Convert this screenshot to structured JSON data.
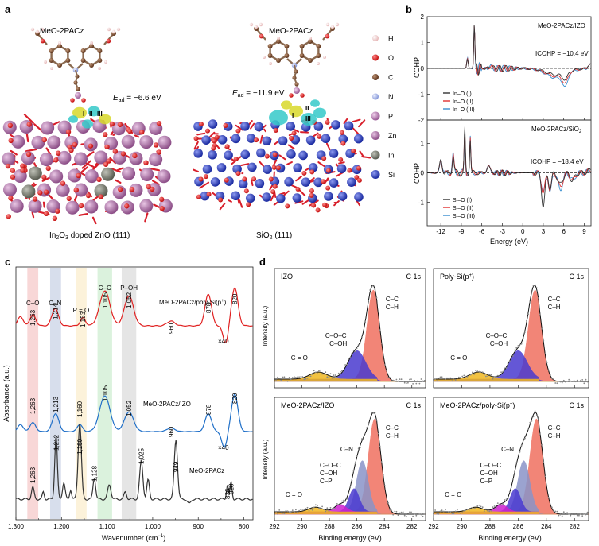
{
  "panels": {
    "a": {
      "letter": "a",
      "left": {
        "molecule": "MeO-2PACz",
        "energy_prefix": "E",
        "energy_sub": "ad",
        "energy_value": " = −6.6 eV",
        "sites": [
          "I",
          "II",
          "III"
        ],
        "caption_pre": "In",
        "caption_sub1": "2",
        "caption_mid": "O",
        "caption_sub2": "3",
        "caption_post": " doped ZnO (111)"
      },
      "right": {
        "molecule": "MeO-2PACz",
        "energy_prefix": "E",
        "energy_sub": "ad",
        "energy_value": " = −11.9 eV",
        "sites": [
          "I",
          "II",
          "III"
        ],
        "caption_pre": "SiO",
        "caption_sub": "2",
        "caption_post": " (111)"
      },
      "legend": [
        {
          "label": "H",
          "color": "#f2d4d4"
        },
        {
          "label": "O",
          "color": "#e02020"
        },
        {
          "label": "C",
          "color": "#7a4a2a"
        },
        {
          "label": "N",
          "color": "#a9b8e8"
        },
        {
          "label": "P",
          "color": "#c98ab8"
        },
        {
          "label": "Zn",
          "color": "#a56aa0"
        },
        {
          "label": "In",
          "color": "#7a7d72"
        },
        {
          "label": "Si",
          "color": "#2a3ab8"
        }
      ]
    },
    "b": {
      "letter": "b",
      "top": {
        "title": "MeO-2PACz/IZO",
        "icohp": "ICOHP = −10.4 eV",
        "legend": [
          "In–O (I)",
          "In–O (II)",
          "In–O (III)"
        ],
        "yticks": [
          "2",
          "1",
          "0",
          "-1",
          "-2"
        ],
        "ylabel": "COHP"
      },
      "bottom": {
        "title_pre": "MeO-2PACz/SiO",
        "title_sub": "2",
        "icohp": "ICOHP = −18.4 eV",
        "legend": [
          "Si–O (I)",
          "Si–O (II)",
          "Si–O (III)"
        ],
        "yticks": [
          "1",
          "0",
          "-1"
        ],
        "ylabel": "COHP"
      },
      "xticks": [
        "-12",
        "-9",
        "-6",
        "-3",
        "0",
        "3",
        "6",
        "9"
      ],
      "xlabel": "Energy (eV)",
      "colors": [
        "#333333",
        "#e03030",
        "#3a8fd0"
      ]
    },
    "c": {
      "letter": "c",
      "ylabel": "Absorbance (a.u.)",
      "xlabel": "Wavenumber (cm",
      "xlabel_sup": "−1",
      "xlabel_end": ")",
      "xticks": [
        "1,300",
        "1,200",
        "1,100",
        "1,000",
        "900",
        "800"
      ],
      "band_labels": [
        "C–O",
        "C–N",
        "P = O",
        "C–C",
        "P–OH"
      ],
      "band_colors": [
        "#f6c9c9",
        "#c9d3e6",
        "#fbeecd",
        "#cfeed2",
        "#dcdcdc"
      ],
      "traces": [
        {
          "name": "MeO-2PACz/poly-Si(p",
          "name_sup": "+",
          "name_end": ")",
          "color": "#e02020",
          "peaks": [
            "1,263",
            "1,214",
            "1,153",
            "1,105",
            "1,052",
            "960",
            "878",
            "820"
          ],
          "mult": "×40"
        },
        {
          "name": "MeO-2PACz/IZO",
          "color": "#1f6fc8",
          "peaks": [
            "1,263",
            "1,213",
            "1,160",
            "1,105",
            "1,052",
            "960",
            "878",
            "820"
          ],
          "mult": "×40"
        },
        {
          "name": "MeO-2PACz",
          "color": "#333333",
          "peaks": [
            "1,263",
            "1,212",
            "1,160",
            "1,128",
            "1,025",
            "949",
            "836",
            "828"
          ]
        }
      ]
    },
    "d": {
      "letter": "d",
      "xticks": [
        "292",
        "290",
        "288",
        "286",
        "284",
        "282"
      ],
      "xlabel": "Binding energy (eV)",
      "ylabel": "Intensity (a.u.)",
      "subpanels": [
        {
          "title": "IZO",
          "title_sup": "",
          "title_end": "",
          "tag": "C 1s",
          "labels": [
            "C–C",
            "C–H",
            "C–O–C",
            "C–OH",
            "C = O"
          ]
        },
        {
          "title": "Poly-Si(p",
          "title_sup": "+",
          "title_end": ")",
          "tag": "C 1s",
          "labels": [
            "C–C",
            "C–H",
            "C–O–C",
            "C–OH",
            "C = O"
          ]
        },
        {
          "title": "MeO-2PACz/IZO",
          "title_sup": "",
          "title_end": "",
          "tag": "C 1s",
          "labels": [
            "C–C",
            "C–H",
            "C–N",
            "C–O–C",
            "C–OH",
            "C–P",
            "C = O"
          ]
        },
        {
          "title": "MeO-2PACz/poly-Si(p",
          "title_sup": "+",
          "title_end": ")",
          "tag": "C 1s",
          "labels": [
            "C–C",
            "C–H",
            "C–N",
            "C–O–C",
            "C–OH",
            "C–P",
            "C = O"
          ]
        }
      ]
    }
  }
}
